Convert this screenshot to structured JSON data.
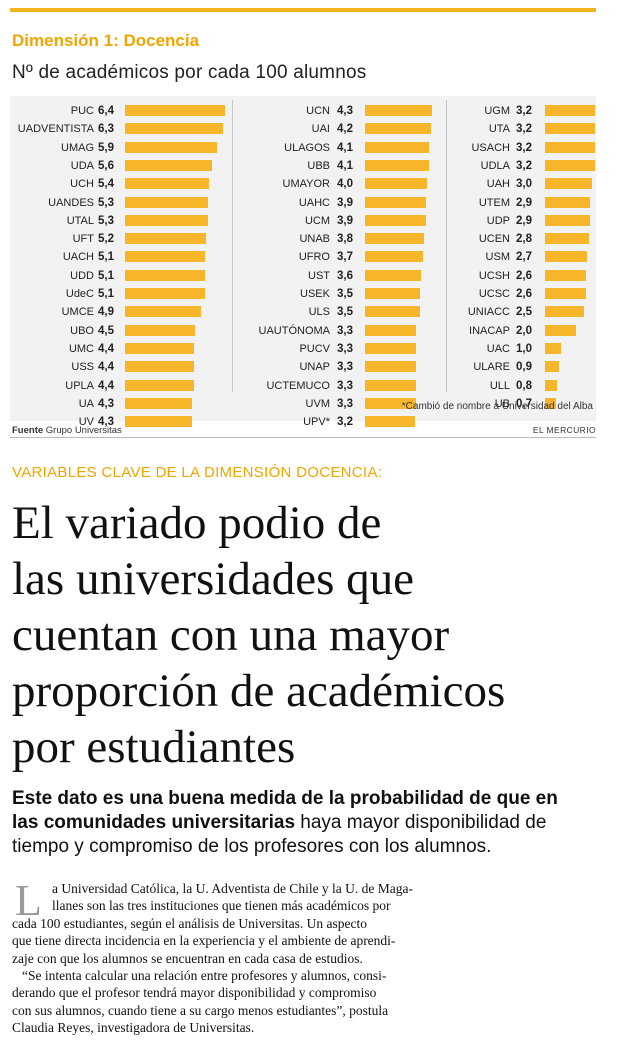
{
  "header": {
    "dimension_title": "Dimensión 1: Docencia",
    "subtitle": "Nº de académicos por cada 100 alumnos"
  },
  "chart_data": {
    "type": "bar",
    "title": "Nº de académicos por cada 100 alumnos",
    "orientation": "horizontal",
    "color": "#f7b52a",
    "xlim": [
      0,
      6.4
    ],
    "columns": [
      {
        "categories": [
          "PUC",
          "UADVENTISTA",
          "UMAG",
          "UDA",
          "UCH",
          "UANDES",
          "UTAL",
          "UFT",
          "UACH",
          "UDD",
          "UdeC",
          "UMCE",
          "UBO",
          "UMC",
          "USS",
          "UPLA",
          "UA",
          "UV"
        ],
        "labels": [
          "6,4",
          "6,3",
          "5,9",
          "5,6",
          "5,4",
          "5,3",
          "5,3",
          "5,2",
          "5,1",
          "5,1",
          "5,1",
          "4,9",
          "4,5",
          "4,4",
          "4,4",
          "4,4",
          "4,3",
          "4,3"
        ],
        "values": [
          6.4,
          6.3,
          5.9,
          5.6,
          5.4,
          5.3,
          5.3,
          5.2,
          5.1,
          5.1,
          5.1,
          4.9,
          4.5,
          4.4,
          4.4,
          4.4,
          4.3,
          4.3
        ]
      },
      {
        "categories": [
          "UCN",
          "UAI",
          "ULAGOS",
          "UBB",
          "UMAYOR",
          "UAHC",
          "UCM",
          "UNAB",
          "UFRO",
          "UST",
          "USEK",
          "ULS",
          "UAUTÓNOMA",
          "PUCV",
          "UNAP",
          "UCTEMUCO",
          "UVM",
          "UPV*"
        ],
        "labels": [
          "4,3",
          "4,2",
          "4,1",
          "4,1",
          "4,0",
          "3,9",
          "3,9",
          "3,8",
          "3,7",
          "3,6",
          "3,5",
          "3,5",
          "3,3",
          "3,3",
          "3,3",
          "3,3",
          "3,3",
          "3,2"
        ],
        "values": [
          4.3,
          4.2,
          4.1,
          4.1,
          4.0,
          3.9,
          3.9,
          3.8,
          3.7,
          3.6,
          3.5,
          3.5,
          3.3,
          3.3,
          3.3,
          3.3,
          3.3,
          3.2
        ]
      },
      {
        "categories": [
          "UGM",
          "UTA",
          "USACH",
          "UDLA",
          "UAH",
          "UTEM",
          "UDP",
          "UCEN",
          "USM",
          "UCSH",
          "UCSC",
          "UNIACC",
          "INACAP",
          "UAC",
          "ULARE",
          "ULL",
          "UB"
        ],
        "labels": [
          "3,2",
          "3,2",
          "3,2",
          "3,2",
          "3,0",
          "2,9",
          "2,9",
          "2,8",
          "2,7",
          "2,6",
          "2,6",
          "2,5",
          "2,0",
          "1,0",
          "0,9",
          "0,8",
          "0,7"
        ],
        "values": [
          3.2,
          3.2,
          3.2,
          3.2,
          3.0,
          2.9,
          2.9,
          2.8,
          2.7,
          2.6,
          2.6,
          2.5,
          2.0,
          1.0,
          0.9,
          0.8,
          0.7
        ]
      }
    ],
    "footnote": "*Cambió de nombre a Universidad del Alba"
  },
  "source": {
    "label": "Fuente",
    "value": "Grupo Universitas",
    "newspaper": "EL MERCURIO"
  },
  "article": {
    "kicker": "VARIABLES CLAVE DE LA DIMENSIÓN DOCENCIA:",
    "headline_lines": [
      "El variado podio de",
      "las universidades que",
      "cuentan con una mayor",
      "proporción de académicos",
      "por estudiantes"
    ],
    "deck_line1": "Este dato es una buena medida de la probabilidad de que en",
    "deck_line2_bold": "las comunidades universitarias",
    "deck_line2_rest": " haya mayor disponibilidad de",
    "deck_line3": "tiempo y compromiso de los profesores con los alumnos.",
    "drop_cap": "L",
    "body_lines": [
      "a Universidad Católica, la U. Adventista de Chile y la U. de Maga-",
      "llanes son las tres instituciones que tienen más académicos por",
      "cada 100 estudiantes, según el análisis de Universitas. Un aspecto",
      "que tiene directa incidencia en la experiencia y el ambiente de aprendi-",
      "zaje con que los alumnos se encuentran en cada casa de estudios.",
      "“Se intenta calcular una relación entre profesores y alumnos, consi-",
      "derando que el profesor tendrá mayor disponibilidad y compromiso",
      "con sus alumnos, cuando tiene a su cargo menos estudiantes”, postula",
      "Claudia Reyes, investigadora de Universitas."
    ]
  }
}
